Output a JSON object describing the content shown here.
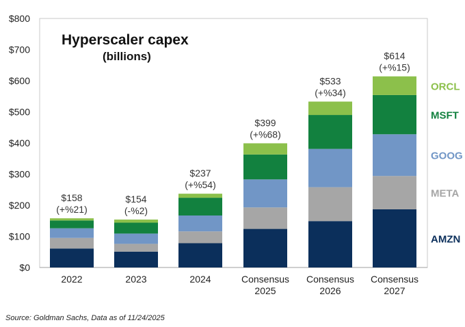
{
  "chart_data": {
    "type": "bar",
    "stacked": true,
    "title": "Hyperscaler capex",
    "subtitle": "(billions)",
    "xlabel": "",
    "ylabel": "",
    "ylim": [
      0,
      800
    ],
    "yticks": [
      0,
      100,
      200,
      300,
      400,
      500,
      600,
      700,
      800
    ],
    "ytick_labels": [
      "$0",
      "$100",
      "$200",
      "$300",
      "$400",
      "$500",
      "$600",
      "$700",
      "$800"
    ],
    "categories": [
      [
        "2022"
      ],
      [
        "2023"
      ],
      [
        "2024"
      ],
      [
        "Consensus",
        "2025"
      ],
      [
        "Consensus",
        "2026"
      ],
      [
        "Consensus",
        "2027"
      ]
    ],
    "series": [
      {
        "name": "AMZN",
        "color": "#0b2f5b",
        "values": [
          61,
          51,
          78,
          124,
          149,
          187
        ]
      },
      {
        "name": "META",
        "color": "#a6a6a6",
        "values": [
          34,
          25,
          38,
          69,
          109,
          107
        ]
      },
      {
        "name": "GOOG",
        "color": "#7196c6",
        "values": [
          31,
          33,
          51,
          90,
          123,
          134
        ]
      },
      {
        "name": "MSFT",
        "color": "#12813f",
        "values": [
          25,
          35,
          57,
          80,
          109,
          126
        ]
      },
      {
        "name": "ORCL",
        "color": "#8cc04b",
        "values": [
          7,
          10,
          13,
          36,
          43,
          60
        ]
      }
    ],
    "totals": [
      "$158",
      "$154",
      "$237",
      "$399",
      "$533",
      "$614"
    ],
    "growth": [
      "(+%21)",
      "(-%2)",
      "(+%54)",
      "(+%68)",
      "(+%34)",
      "(+%15)"
    ],
    "legend_position": "right"
  },
  "source": "Source: Goldman Sachs, Data as of 11/24/2025"
}
